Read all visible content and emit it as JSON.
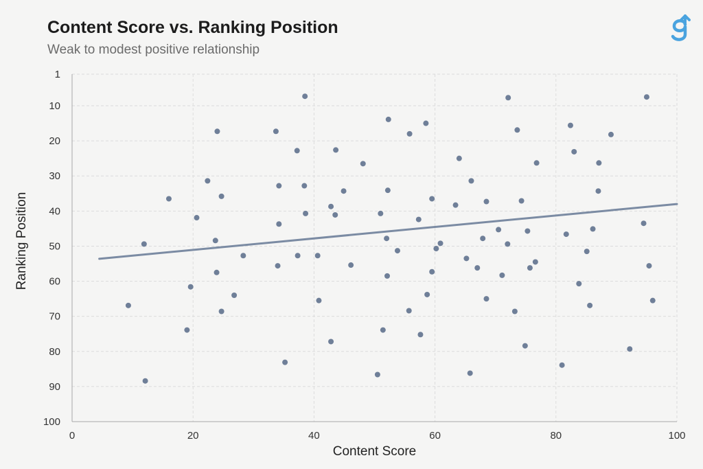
{
  "header": {
    "title": "Content Score vs. Ranking Position",
    "subtitle": "Weak to modest positive relationship"
  },
  "colors": {
    "background": "#f5f5f4",
    "point": "#6f7f98",
    "trendline": "#7b8ba3",
    "grid": "#dcdcdc",
    "logo": "#4aa3df"
  },
  "logo": {
    "icon": "g-arrow-icon"
  },
  "chart_data": {
    "type": "scatter",
    "xlabel": "Content Score",
    "ylabel": "Ranking Position",
    "xlim": [
      0,
      100
    ],
    "ylim": [
      1,
      100
    ],
    "y_inverted": true,
    "x_ticks": [
      0,
      20,
      40,
      60,
      80,
      100
    ],
    "y_ticks": [
      1,
      10,
      20,
      30,
      40,
      50,
      60,
      70,
      80,
      90,
      100
    ],
    "grid": "dashed",
    "trendline": {
      "x": [
        4.5,
        100
      ],
      "y": [
        53.6,
        38.0
      ]
    },
    "points": [
      [
        9.3,
        66.9
      ],
      [
        11.9,
        49.4
      ],
      [
        12.1,
        88.4
      ],
      [
        16.0,
        36.5
      ],
      [
        19.0,
        73.9
      ],
      [
        19.6,
        61.6
      ],
      [
        20.6,
        41.9
      ],
      [
        22.4,
        31.4
      ],
      [
        23.7,
        48.4
      ],
      [
        23.9,
        57.5
      ],
      [
        24.0,
        17.3
      ],
      [
        24.7,
        35.8
      ],
      [
        24.7,
        68.6
      ],
      [
        26.8,
        64.0
      ],
      [
        28.3,
        52.7
      ],
      [
        33.7,
        17.3
      ],
      [
        34.0,
        55.6
      ],
      [
        34.2,
        32.8
      ],
      [
        34.2,
        43.7
      ],
      [
        35.2,
        83.1
      ],
      [
        37.2,
        22.8
      ],
      [
        37.3,
        52.7
      ],
      [
        38.4,
        32.8
      ],
      [
        38.5,
        7.3
      ],
      [
        38.6,
        40.7
      ],
      [
        40.6,
        52.7
      ],
      [
        40.8,
        65.5
      ],
      [
        42.8,
        38.7
      ],
      [
        42.8,
        77.2
      ],
      [
        43.5,
        41.1
      ],
      [
        43.6,
        22.6
      ],
      [
        44.9,
        34.3
      ],
      [
        46.1,
        55.4
      ],
      [
        48.1,
        26.5
      ],
      [
        50.5,
        86.6
      ],
      [
        51.0,
        40.7
      ],
      [
        51.4,
        73.9
      ],
      [
        52.0,
        47.8
      ],
      [
        52.1,
        58.5
      ],
      [
        52.2,
        34.1
      ],
      [
        52.3,
        13.9
      ],
      [
        53.8,
        51.3
      ],
      [
        55.7,
        68.4
      ],
      [
        55.8,
        18.0
      ],
      [
        57.3,
        42.4
      ],
      [
        57.6,
        75.2
      ],
      [
        58.5,
        15.0
      ],
      [
        58.7,
        63.8
      ],
      [
        59.5,
        36.5
      ],
      [
        59.5,
        57.3
      ],
      [
        60.2,
        50.7
      ],
      [
        60.9,
        49.2
      ],
      [
        63.4,
        38.3
      ],
      [
        64.0,
        25.0
      ],
      [
        65.2,
        53.5
      ],
      [
        65.8,
        86.2
      ],
      [
        66.0,
        31.4
      ],
      [
        67.0,
        56.2
      ],
      [
        67.9,
        47.8
      ],
      [
        68.5,
        37.3
      ],
      [
        68.5,
        65.0
      ],
      [
        70.5,
        45.3
      ],
      [
        71.1,
        58.3
      ],
      [
        72.0,
        49.4
      ],
      [
        72.1,
        7.7
      ],
      [
        73.2,
        68.6
      ],
      [
        73.6,
        16.9
      ],
      [
        74.3,
        37.1
      ],
      [
        74.9,
        78.4
      ],
      [
        75.3,
        45.7
      ],
      [
        75.7,
        56.2
      ],
      [
        76.6,
        54.5
      ],
      [
        76.8,
        26.3
      ],
      [
        81.0,
        83.9
      ],
      [
        81.7,
        46.6
      ],
      [
        82.4,
        15.6
      ],
      [
        83.0,
        23.1
      ],
      [
        83.8,
        60.7
      ],
      [
        85.1,
        51.5
      ],
      [
        85.6,
        66.9
      ],
      [
        86.1,
        45.1
      ],
      [
        87.0,
        34.3
      ],
      [
        87.1,
        26.3
      ],
      [
        89.1,
        18.2
      ],
      [
        92.2,
        79.3
      ],
      [
        94.5,
        43.5
      ],
      [
        95.0,
        7.5
      ],
      [
        95.4,
        55.6
      ],
      [
        96.0,
        65.5
      ]
    ]
  }
}
